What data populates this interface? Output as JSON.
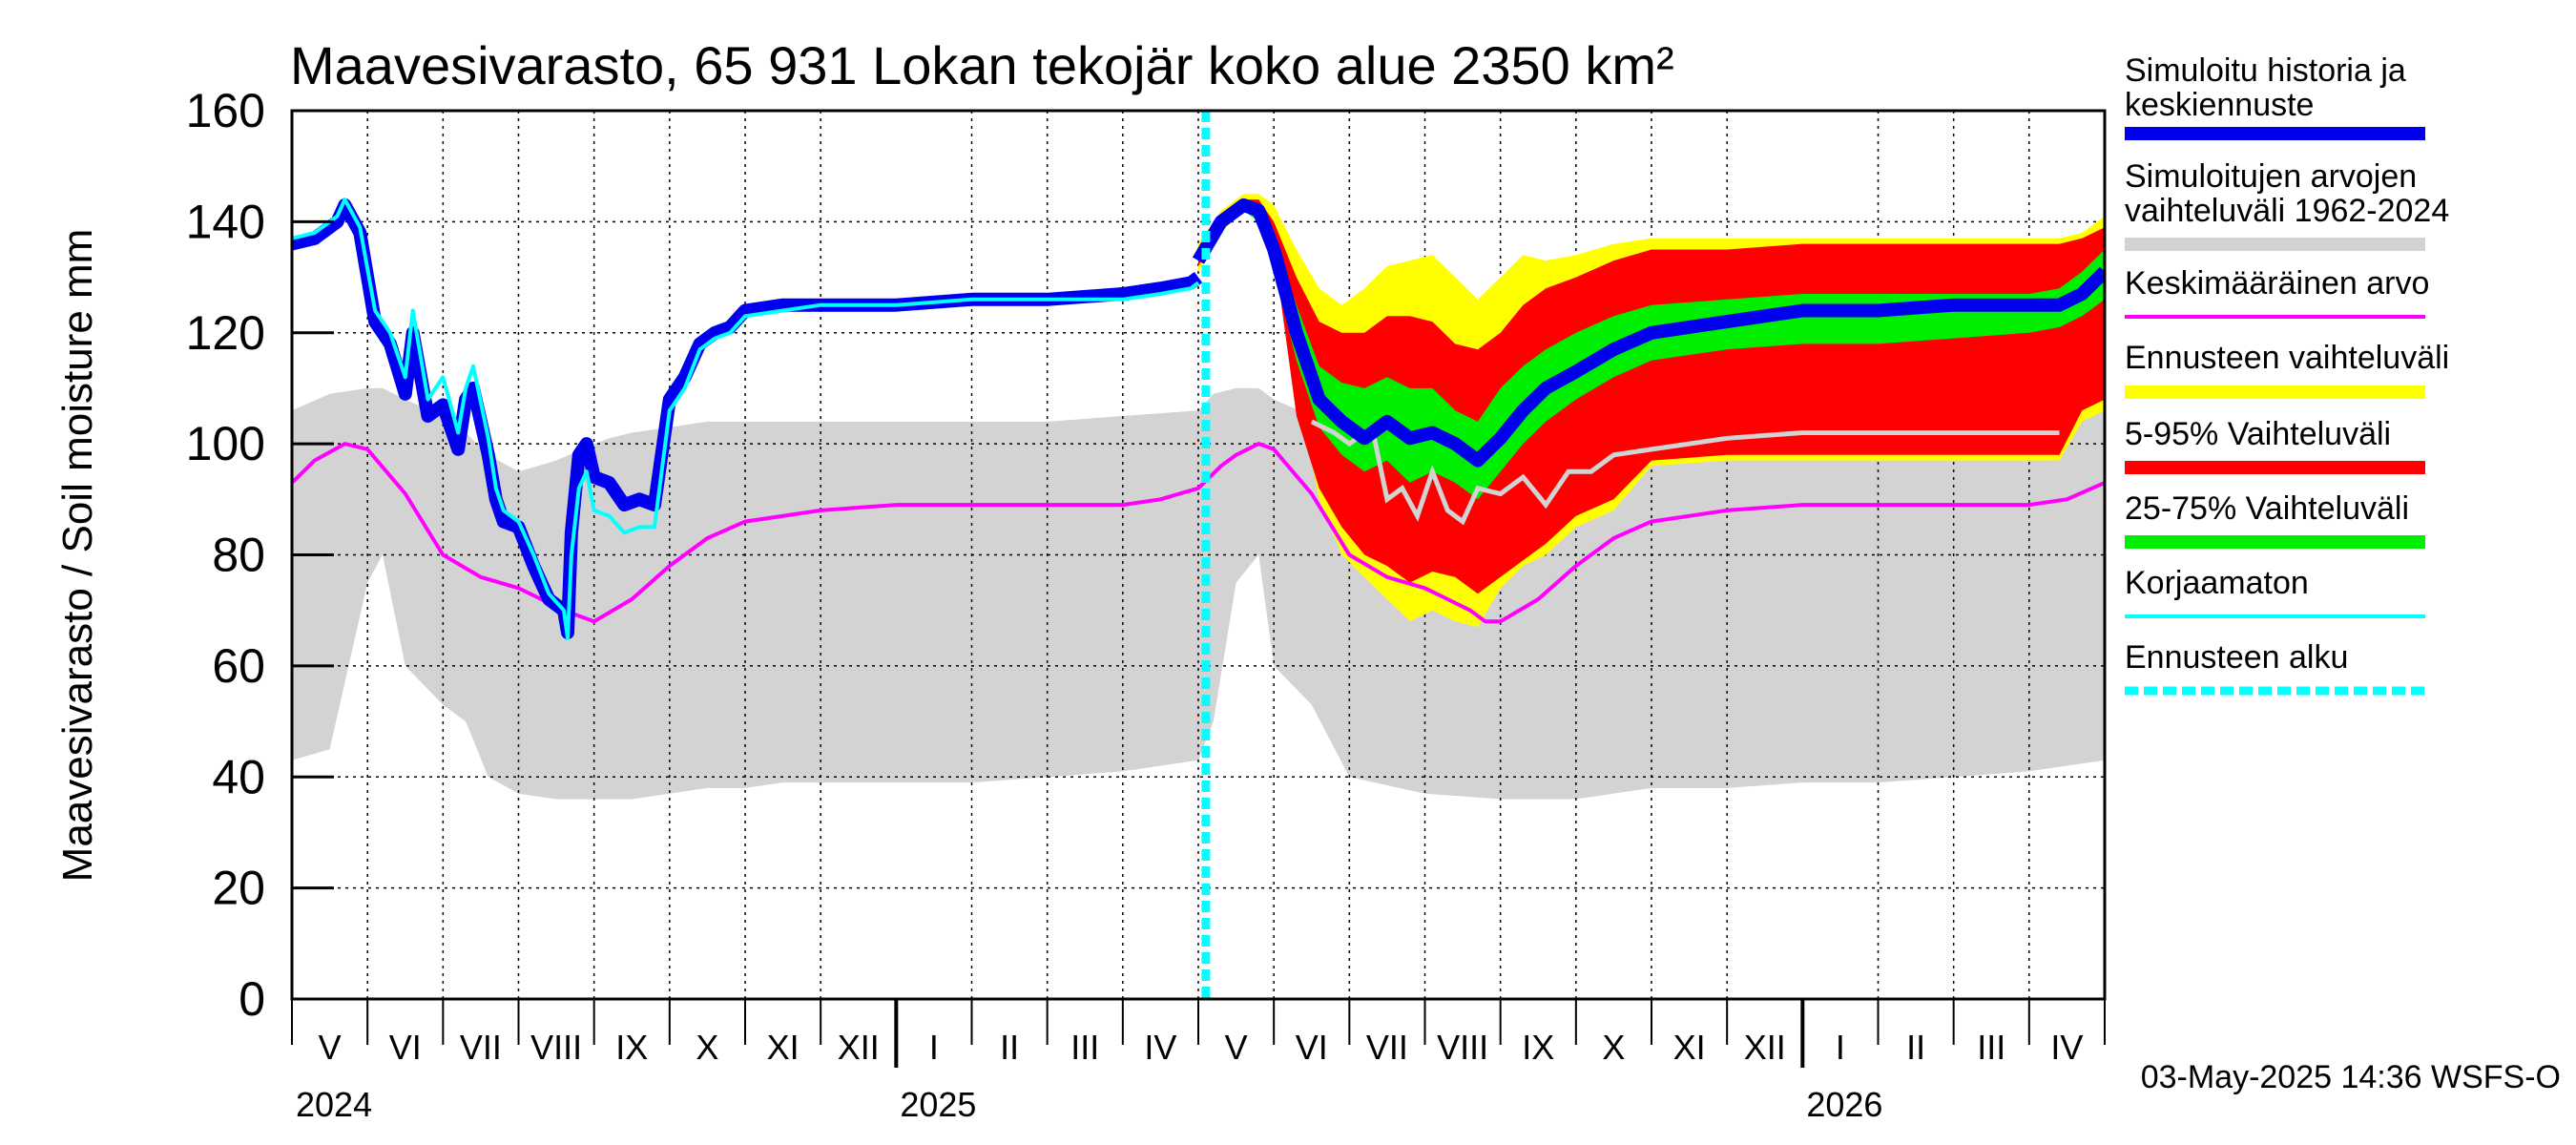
{
  "chart_data": {
    "type": "area",
    "title": "Maavesivarasto, 65 931 Lokan tekojär koko alue 2350 km²",
    "ylabel": "Maavesivarasto / Soil moisture   mm",
    "ylim": [
      0,
      160
    ],
    "yticks": [
      0,
      20,
      40,
      60,
      80,
      100,
      120,
      140,
      160
    ],
    "x_range": [
      "2024-04-20",
      "2026-05-20"
    ],
    "months": [
      "V",
      "VI",
      "VII",
      "VIII",
      "IX",
      "X",
      "XI",
      "XII",
      "I",
      "II",
      "III",
      "IV",
      "V",
      "VI",
      "VII",
      "VIII",
      "IX",
      "X",
      "XI",
      "XII",
      "I",
      "II",
      "III",
      "IV"
    ],
    "years": [
      "2024",
      "2025",
      "2026"
    ],
    "forecast_start": "2025-05-03",
    "footer": "03-May-2025 14:36 WSFS-O",
    "legend": [
      {
        "label": "Simuloitu historia ja keskiennuste",
        "color": "#0000ee"
      },
      {
        "label": "Simuloitujen arvojen vaihteluväli 1962-2024",
        "color": "#d3d3d3"
      },
      {
        "label": "Keskimääräinen arvo",
        "color": "#ff00ff"
      },
      {
        "label": "Ennusteen vaihteluväli",
        "color": "#ffff00"
      },
      {
        "label": "5-95% Vaihteluväli",
        "color": "#ff0000"
      },
      {
        "label": "25-75% Vaihteluväli",
        "color": "#00ee00"
      },
      {
        "label": "Korjaamaton",
        "color": "#00ffff"
      },
      {
        "label": "Ennusteen alku",
        "color": "#00ffff"
      }
    ],
    "series": {
      "hist_range": {
        "x": [
          0,
          0.5,
          1,
          1.2,
          1.5,
          2,
          2.3,
          2.6,
          3,
          3.5,
          4,
          4.2,
          4.5,
          5,
          5.5,
          6,
          6.5,
          7,
          8,
          9,
          10,
          11,
          12,
          12.2,
          12.5,
          12.8,
          13,
          13.5,
          14,
          15,
          16,
          17,
          18,
          19,
          20,
          21,
          22,
          23,
          24
        ],
        "lo": [
          43,
          45,
          75,
          80,
          60,
          53,
          50,
          40,
          37,
          36,
          36,
          36,
          36,
          37,
          38,
          38,
          39,
          39,
          39,
          39,
          40,
          41,
          43,
          50,
          75,
          80,
          60,
          53,
          40,
          37,
          36,
          36,
          38,
          38,
          39,
          39,
          40,
          41,
          43
        ],
        "hi": [
          106,
          109,
          110,
          110,
          108,
          105,
          102,
          98,
          95,
          97,
          100,
          101,
          102,
          103,
          104,
          104,
          104,
          104,
          104,
          104,
          104,
          105,
          106,
          109,
          110,
          110,
          108,
          105,
          100,
          95,
          99,
          102,
          104,
          104,
          104,
          104,
          104,
          105,
          106
        ]
      },
      "mean": {
        "x": [
          0,
          0.3,
          0.7,
          1,
          1.5,
          2,
          2.5,
          3,
          3.3,
          3.6,
          3.8,
          4,
          4.5,
          5,
          5.5,
          6,
          7,
          8,
          9,
          10,
          11,
          11.5,
          12,
          12.3,
          12.5,
          12.8,
          13,
          13.5,
          14,
          14.5,
          15,
          15.3,
          15.6,
          15.8,
          16,
          16.5,
          17,
          17.5,
          18,
          19,
          20,
          21,
          22,
          22.5,
          23,
          23.5,
          24
        ],
        "y": [
          93,
          97,
          100,
          99,
          91,
          80,
          76,
          74,
          72,
          70,
          69,
          68,
          72,
          78,
          83,
          86,
          88,
          89,
          89,
          89,
          89,
          90,
          92,
          96,
          98,
          100,
          99,
          91,
          80,
          76,
          74,
          72,
          70,
          68,
          68,
          72,
          78,
          83,
          86,
          88,
          89,
          89,
          89,
          89,
          89,
          90,
          93
        ]
      },
      "simulated": {
        "x": [
          0,
          0.3,
          0.6,
          0.7,
          0.9,
          1.1,
          1.3,
          1.5,
          1.6,
          1.8,
          2.0,
          2.2,
          2.3,
          2.4,
          2.6,
          2.7,
          2.8,
          3.0,
          3.2,
          3.4,
          3.6,
          3.65,
          3.7,
          3.8,
          3.9,
          4.0,
          4.2,
          4.4,
          4.6,
          4.8,
          5.0,
          5.2,
          5.4,
          5.6,
          5.8,
          6.0,
          6.5,
          7.0,
          8.0,
          9.0,
          10.0,
          11.0,
          11.5,
          11.9,
          12.0
        ],
        "y": [
          136,
          137,
          140,
          143,
          138,
          122,
          118,
          109,
          120,
          105,
          107,
          99,
          108,
          110,
          98,
          90,
          86,
          85,
          78,
          72,
          70,
          66,
          84,
          98,
          100,
          94,
          93,
          89,
          90,
          89,
          108,
          112,
          118,
          120,
          121,
          124,
          125,
          125,
          125,
          126,
          126,
          127,
          128,
          129,
          130
        ]
      },
      "uncorrected": {
        "x": [
          0,
          0.3,
          0.6,
          0.7,
          0.9,
          1.1,
          1.3,
          1.5,
          1.6,
          1.8,
          2.0,
          2.2,
          2.3,
          2.4,
          2.6,
          2.7,
          2.8,
          3.0,
          3.2,
          3.4,
          3.6,
          3.65,
          3.7,
          3.8,
          3.9,
          4.0,
          4.2,
          4.4,
          4.6,
          4.8,
          5.0,
          5.2,
          5.4,
          5.6,
          5.8,
          6.0,
          6.5,
          7.0,
          8.0,
          9.0,
          10.0,
          11.0,
          11.5,
          11.9,
          12.0
        ],
        "y": [
          137,
          138,
          141,
          144,
          139,
          124,
          120,
          112,
          124,
          108,
          112,
          102,
          110,
          114,
          101,
          92,
          88,
          86,
          80,
          73,
          70,
          65,
          80,
          92,
          95,
          88,
          87,
          84,
          85,
          85,
          106,
          110,
          117,
          119,
          120,
          123,
          124,
          125,
          125,
          126,
          126,
          126,
          127,
          128,
          129
        ]
      },
      "fc_range": {
        "x": [
          12.0,
          12.3,
          12.6,
          12.8,
          13.0,
          13.3,
          13.6,
          13.9,
          14.2,
          14.5,
          14.8,
          15.1,
          15.4,
          15.7,
          16.0,
          16.3,
          16.6,
          17.0,
          17.5,
          18.0,
          19.0,
          20.0,
          21.0,
          22.0,
          23.0,
          23.4,
          23.7,
          24.0
        ],
        "lo": [
          131,
          138,
          142,
          143,
          138,
          110,
          90,
          80,
          76,
          72,
          68,
          70,
          68,
          67,
          74,
          78,
          80,
          85,
          88,
          96,
          97,
          97,
          97,
          97,
          97,
          97,
          104,
          106
        ],
        "hi": [
          136,
          142,
          145,
          145,
          143,
          135,
          128,
          125,
          128,
          132,
          133,
          134,
          130,
          126,
          130,
          134,
          133,
          134,
          136,
          137,
          137,
          137,
          137,
          137,
          137,
          137,
          138,
          141
        ]
      },
      "fc_90": {
        "x": [
          12.0,
          12.3,
          12.6,
          12.8,
          13.0,
          13.3,
          13.6,
          13.9,
          14.2,
          14.5,
          14.8,
          15.1,
          15.4,
          15.7,
          16.0,
          16.3,
          16.6,
          17.0,
          17.5,
          18.0,
          19.0,
          20.0,
          21.0,
          22.0,
          23.0,
          23.4,
          23.7,
          24.0
        ],
        "lo": [
          132,
          139,
          142,
          142,
          135,
          105,
          92,
          85,
          80,
          78,
          75,
          77,
          76,
          73,
          76,
          79,
          82,
          87,
          90,
          97,
          98,
          98,
          98,
          98,
          98,
          98,
          106,
          108
        ],
        "hi": [
          135,
          141,
          144,
          144,
          140,
          130,
          122,
          120,
          120,
          123,
          123,
          122,
          118,
          117,
          120,
          125,
          128,
          130,
          133,
          135,
          135,
          136,
          136,
          136,
          136,
          136,
          137,
          139
        ]
      },
      "fc_50": {
        "x": [
          12.0,
          12.3,
          12.6,
          12.8,
          13.0,
          13.3,
          13.6,
          13.9,
          14.2,
          14.5,
          14.8,
          15.1,
          15.4,
          15.7,
          16.0,
          16.3,
          16.6,
          17.0,
          17.5,
          18.0,
          19.0,
          20.0,
          21.0,
          22.0,
          23.0,
          23.4,
          23.7,
          24.0
        ],
        "lo": [
          133,
          140,
          142,
          140,
          131,
          115,
          103,
          98,
          95,
          97,
          93,
          95,
          93,
          90,
          95,
          100,
          104,
          108,
          112,
          115,
          117,
          118,
          118,
          119,
          120,
          121,
          123,
          126
        ],
        "hi": [
          134,
          140,
          143,
          143,
          137,
          125,
          114,
          111,
          110,
          112,
          110,
          110,
          106,
          104,
          110,
          114,
          117,
          120,
          123,
          125,
          126,
          127,
          127,
          127,
          127,
          128,
          131,
          135
        ]
      },
      "fc_median": {
        "x": [
          12.0,
          12.3,
          12.6,
          12.8,
          13.0,
          13.3,
          13.6,
          13.9,
          14.2,
          14.5,
          14.8,
          15.1,
          15.4,
          15.7,
          16.0,
          16.3,
          16.6,
          17.0,
          17.5,
          18.0,
          19.0,
          20.0,
          21.0,
          22.0,
          23.0,
          23.4,
          23.7,
          24.0
        ],
        "y": [
          133,
          140,
          143,
          142,
          135,
          120,
          108,
          104,
          101,
          104,
          101,
          102,
          100,
          97,
          101,
          106,
          110,
          113,
          117,
          120,
          122,
          124,
          124,
          125,
          125,
          125,
          127,
          131
        ]
      },
      "fc_grey": {
        "x": [
          13.5,
          13.8,
          14.0,
          14.3,
          14.5,
          14.7,
          14.9,
          15.1,
          15.3,
          15.5,
          15.7,
          16.0,
          16.3,
          16.6,
          16.9,
          17.2,
          17.5,
          18.0,
          18.5,
          19.0,
          20.0,
          21.0,
          22.0,
          23.0,
          23.4
        ],
        "y": [
          104,
          102,
          100,
          103,
          90,
          92,
          87,
          95,
          88,
          86,
          92,
          91,
          94,
          89,
          95,
          95,
          98,
          99,
          100,
          101,
          102,
          102,
          102,
          102,
          102
        ]
      }
    }
  }
}
